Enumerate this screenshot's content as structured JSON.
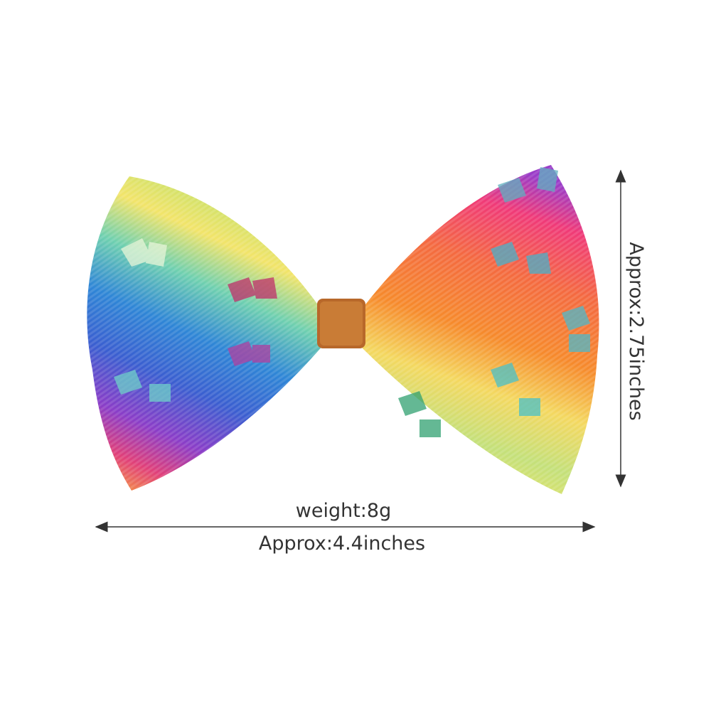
{
  "annotations": {
    "weight": "weight:8g",
    "width": "Approx:4.4inches",
    "height": "Approx:2.75inches"
  }
}
